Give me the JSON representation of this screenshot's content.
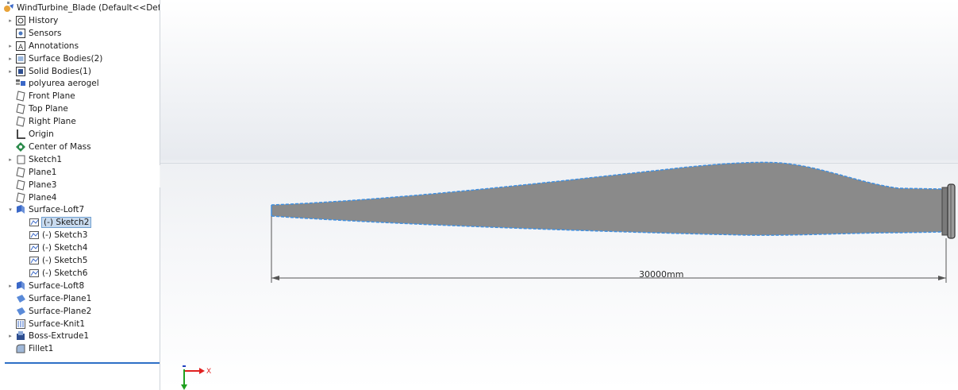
{
  "feature_tree": {
    "items": [
      {
        "label": "WindTurbine_Blade  (Default<<Defa",
        "icon": "part-icon",
        "expandable": false,
        "selected": false
      },
      {
        "label": "History",
        "icon": "history-icon",
        "expandable": true,
        "selected": false
      },
      {
        "label": "Sensors",
        "icon": "sensors-icon",
        "expandable": false,
        "selected": false
      },
      {
        "label": "Annotations",
        "icon": "annotations-icon",
        "expandable": true,
        "selected": false
      },
      {
        "label": "Surface Bodies(2)",
        "icon": "surface-bodies-icon",
        "expandable": true,
        "selected": false
      },
      {
        "label": "Solid Bodies(1)",
        "icon": "solid-bodies-icon",
        "expandable": true,
        "selected": false
      },
      {
        "label": "polyurea aerogel",
        "icon": "material-icon",
        "expandable": false,
        "selected": false
      },
      {
        "label": "Front Plane",
        "icon": "plane-icon",
        "expandable": false,
        "selected": false
      },
      {
        "label": "Top Plane",
        "icon": "plane-icon",
        "expandable": false,
        "selected": false
      },
      {
        "label": "Right Plane",
        "icon": "plane-icon",
        "expandable": false,
        "selected": false
      },
      {
        "label": "Origin",
        "icon": "origin-icon",
        "expandable": false,
        "selected": false
      },
      {
        "label": "Center of Mass",
        "icon": "center-of-mass-icon",
        "expandable": false,
        "selected": false
      },
      {
        "label": "Sketch1",
        "icon": "sketch-icon",
        "expandable": true,
        "selected": false
      },
      {
        "label": "Plane1",
        "icon": "plane-icon",
        "expandable": false,
        "selected": false
      },
      {
        "label": "Plane3",
        "icon": "plane-icon",
        "expandable": false,
        "selected": false
      },
      {
        "label": "Plane4",
        "icon": "plane-icon",
        "expandable": false,
        "selected": false
      },
      {
        "label": "Surface-Loft7",
        "icon": "surface-loft-icon",
        "expandable": true,
        "expanded": true,
        "selected": false
      },
      {
        "label": "(-) Sketch2",
        "icon": "sub-sketch-icon",
        "expandable": false,
        "selected": true,
        "child": true
      },
      {
        "label": "(-) Sketch3",
        "icon": "sub-sketch-icon",
        "expandable": false,
        "selected": false,
        "child": true
      },
      {
        "label": "(-) Sketch4",
        "icon": "sub-sketch-icon",
        "expandable": false,
        "selected": false,
        "child": true
      },
      {
        "label": "(-) Sketch5",
        "icon": "sub-sketch-icon",
        "expandable": false,
        "selected": false,
        "child": true
      },
      {
        "label": "(-) Sketch6",
        "icon": "sub-sketch-icon",
        "expandable": false,
        "selected": false,
        "child": true
      },
      {
        "label": "Surface-Loft8",
        "icon": "surface-loft-icon",
        "expandable": true,
        "selected": false
      },
      {
        "label": "Surface-Plane1",
        "icon": "surface-plane-icon",
        "expandable": false,
        "selected": false
      },
      {
        "label": "Surface-Plane2",
        "icon": "surface-plane-icon",
        "expandable": false,
        "selected": false
      },
      {
        "label": "Surface-Knit1",
        "icon": "surface-knit-icon",
        "expandable": false,
        "selected": false
      },
      {
        "label": "Boss-Extrude1",
        "icon": "boss-extrude-icon",
        "expandable": true,
        "selected": false
      },
      {
        "label": "Fillet1",
        "icon": "fillet-icon",
        "expandable": false,
        "selected": false
      }
    ]
  },
  "viewport": {
    "dimension_label": "30000mm",
    "triad": {
      "x_label": "X"
    }
  },
  "colors": {
    "blade_fill": "#8a8a8a",
    "sketch_edge": "#3f8fe0",
    "selection": "#c8daee",
    "axis_x": "#e02020",
    "axis_y": "#20a020"
  }
}
